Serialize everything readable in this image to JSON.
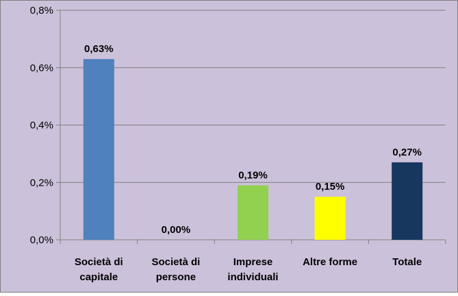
{
  "chart_data": {
    "type": "bar",
    "categories": [
      [
        "Società di",
        "capitale"
      ],
      [
        "Società di",
        "persone"
      ],
      [
        "Imprese",
        "individuali"
      ],
      [
        "Altre forme"
      ],
      [
        "Totale"
      ]
    ],
    "values": [
      0.63,
      0.0,
      0.19,
      0.15,
      0.27
    ],
    "value_labels": [
      "0,63%",
      "0,00%",
      "0,19%",
      "0,15%",
      "0,27%"
    ],
    "bar_colors": [
      "#4f81bd",
      "#4f81bd",
      "#92d050",
      "#ffff00",
      "#17375e"
    ],
    "ylim": [
      0,
      0.8
    ],
    "yticks": [
      0,
      0.2,
      0.4,
      0.6,
      0.8
    ],
    "ytick_labels": [
      "0,0%",
      "0,2%",
      "0,4%",
      "0,6%",
      "0,8%"
    ],
    "grid": true,
    "title": "",
    "xlabel": "",
    "ylabel": ""
  },
  "style": {
    "plot_background": "#ccc1da",
    "outer_background": "#ccc1da",
    "border_color": "#7f7f7f",
    "gridline_color": "#7f7f7f"
  }
}
